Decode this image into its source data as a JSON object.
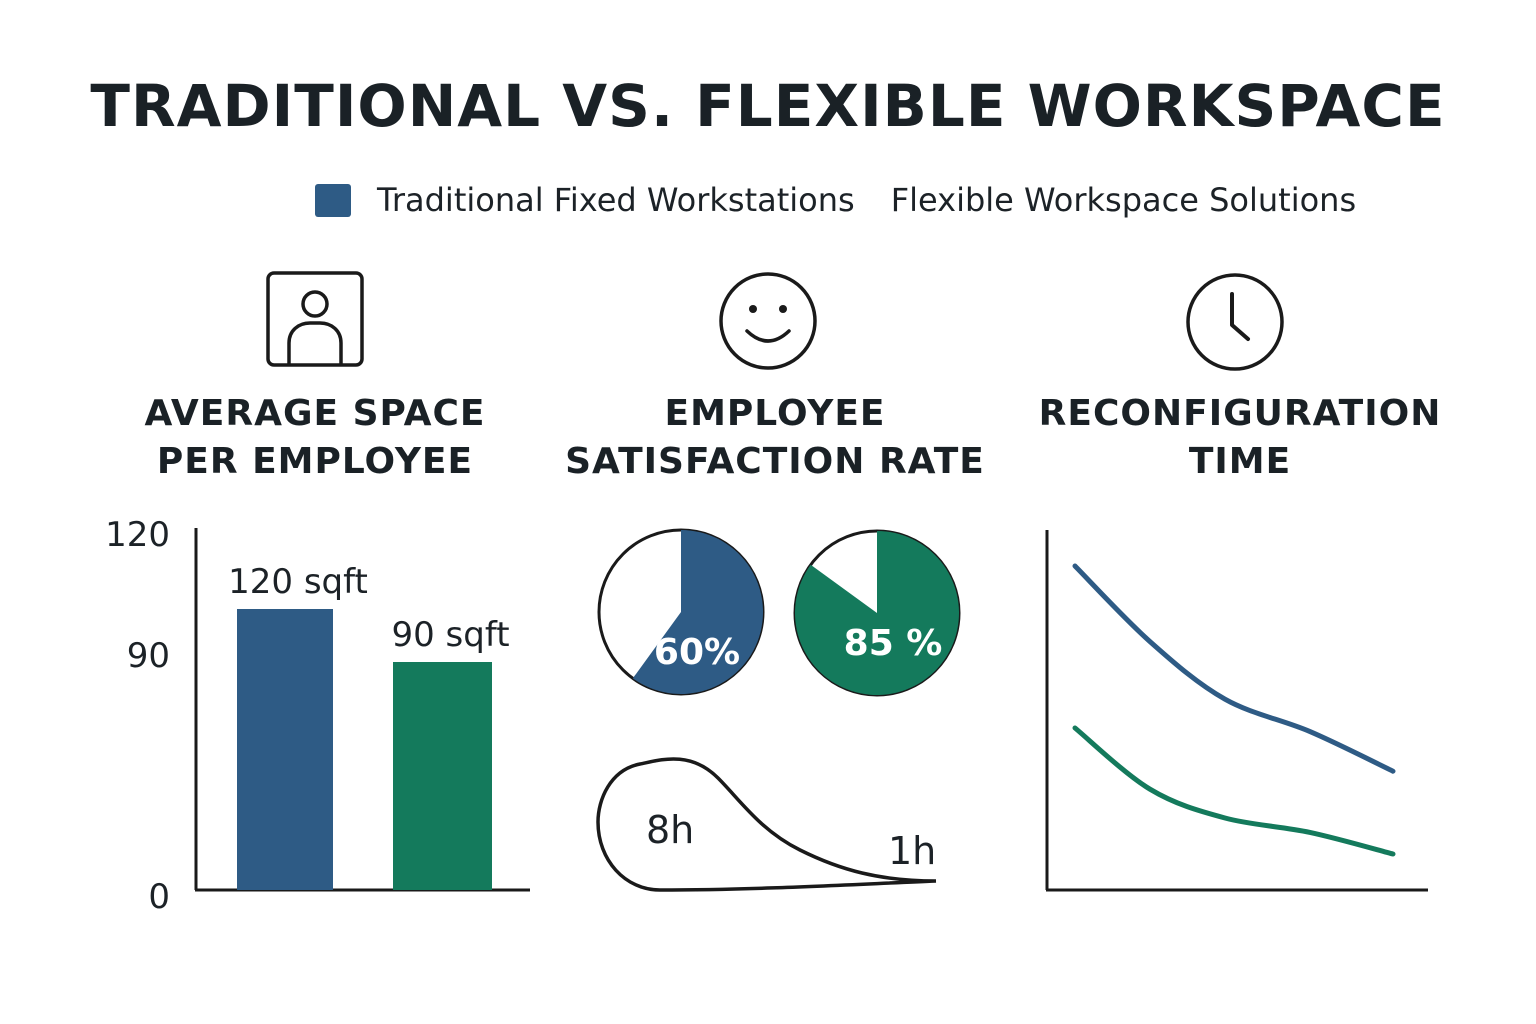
{
  "title": "TRADITIONAL VS. FLEXIBLE WORKSPACE",
  "legend": [
    {
      "label": "Traditional Fixed Workstations",
      "color": "#2e5b85",
      "swatch": true
    },
    {
      "label": "Flexible Workspace Solutions",
      "color": "#147a5c",
      "swatch": false
    }
  ],
  "colors": {
    "traditional": "#2e5b85",
    "flexible": "#147a5c",
    "axis": "#1a1a1a"
  },
  "panels": [
    {
      "title_line1": "AVERAGE SPACE",
      "title_line2": "PER EMPLOYEE",
      "icon": "person-frame-icon"
    },
    {
      "title_line1": "EMPLOYEE",
      "title_line2": "SATISFACTION RATE",
      "icon": "smiley-face-icon"
    },
    {
      "title_line1": "RECONFIGURATION",
      "title_line2": "TIME",
      "icon": "clock-icon"
    }
  ],
  "chart_data": [
    {
      "type": "bar",
      "categories": [
        "Traditional Fixed Workstations",
        "Flexible Workspace Solutions"
      ],
      "values": [
        120,
        90
      ],
      "data_labels": [
        "120 sqft",
        "90 sqft"
      ],
      "yticks": [
        "120",
        "90",
        "0"
      ],
      "ylim": [
        0,
        120
      ]
    },
    {
      "type": "pie",
      "series": [
        {
          "value": 60,
          "label": "60%"
        },
        {
          "value": 85,
          "label": "85 %"
        }
      ]
    },
    {
      "type": "line",
      "annotations": [
        "8h",
        "1h"
      ],
      "series": [
        {
          "values": [
            8,
            1
          ]
        }
      ]
    },
    {
      "type": "line",
      "x": [
        0,
        1,
        2,
        3,
        4
      ],
      "series": [
        {
          "values": [
            9.0,
            6.9,
            5.3,
            4.4,
            3.3
          ]
        },
        {
          "values": [
            4.5,
            2.8,
            2.0,
            1.6,
            1.0
          ]
        }
      ]
    }
  ]
}
